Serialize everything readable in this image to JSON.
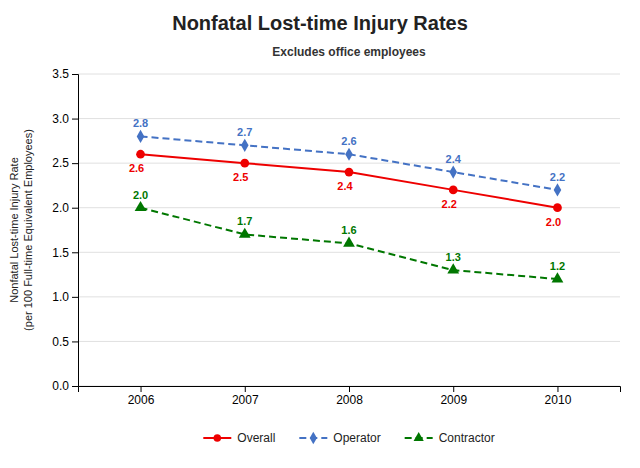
{
  "chart_data": {
    "type": "line",
    "title": "Nonfatal Lost-time Injury Rates",
    "subtitle": "Excludes office employees",
    "ylabel": "Nonfatal Lost-time Injury Rate\n(per 100 Full-time Equivalent Employees)",
    "x": [
      2006,
      2007,
      2008,
      2009,
      2010
    ],
    "xlim": [
      2005.4,
      2010.6
    ],
    "xticks": [
      2006,
      2007,
      2008,
      2009,
      2010
    ],
    "ylim": [
      0,
      3.5
    ],
    "yticks": [
      {
        "value": 0,
        "label": "0.0"
      },
      0.5,
      {
        "value": 1,
        "label": "1.0"
      },
      1.5,
      {
        "value": 2,
        "label": "2.0"
      },
      2.5,
      {
        "value": 3,
        "label": "3.0"
      },
      3.5
    ],
    "grid": true,
    "legend": "bottom",
    "data_labels": true,
    "series": [
      {
        "name": "Overall",
        "color": "#EE0000",
        "marker": "circle",
        "line_style": "solid",
        "values": [
          2.6,
          2.5,
          2.4,
          2.2,
          2.0
        ],
        "value_labels": [
          "2.6",
          "2.5",
          "2.4",
          "2.2",
          "2.0"
        ]
      },
      {
        "name": "Operator",
        "color": "#4472C4",
        "marker": "diamond",
        "line_style": "dashed",
        "values": [
          2.8,
          2.7,
          2.6,
          2.4,
          2.2
        ],
        "value_labels": [
          "2.8",
          "2.7",
          "2.6",
          "2.4",
          "2.2"
        ]
      },
      {
        "name": "Contractor",
        "color": "#007700",
        "marker": "triangle",
        "line_style": "dashed",
        "values": [
          2.0,
          1.7,
          1.6,
          1.3,
          1.2
        ],
        "value_labels": [
          "2.0",
          "1.7",
          "1.6",
          "1.3",
          "1.2"
        ]
      }
    ]
  }
}
